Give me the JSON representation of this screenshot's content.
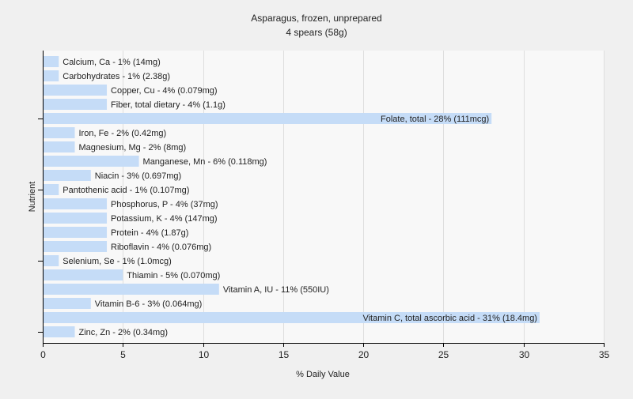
{
  "chart_data": {
    "type": "bar",
    "orientation": "horizontal",
    "title": "Asparagus, frozen, unprepared",
    "subtitle": "4 spears (58g)",
    "xlabel": "% Daily Value",
    "ylabel": "Nutrient",
    "xlim": [
      0,
      35
    ],
    "xticks": [
      0,
      5,
      10,
      15,
      20,
      25,
      30,
      35
    ],
    "grid": true,
    "bar_color": "#c5dcf7",
    "categories": [
      "Calcium, Ca",
      "Carbohydrates",
      "Copper, Cu",
      "Fiber, total dietary",
      "Folate, total",
      "Iron, Fe",
      "Magnesium, Mg",
      "Manganese, Mn",
      "Niacin",
      "Pantothenic acid",
      "Phosphorus, P",
      "Potassium, K",
      "Protein",
      "Riboflavin",
      "Selenium, Se",
      "Thiamin",
      "Vitamin A, IU",
      "Vitamin B-6",
      "Vitamin C, total ascorbic acid",
      "Zinc, Zn"
    ],
    "values": [
      1,
      1,
      4,
      4,
      28,
      2,
      2,
      6,
      3,
      1,
      4,
      4,
      4,
      4,
      1,
      5,
      11,
      3,
      31,
      2
    ],
    "labels": [
      "Calcium, Ca - 1% (14mg)",
      "Carbohydrates - 1% (2.38g)",
      "Copper, Cu - 4% (0.079mg)",
      "Fiber, total dietary - 4% (1.1g)",
      "Folate, total - 28% (111mcg)",
      "Iron, Fe - 2% (0.42mg)",
      "Magnesium, Mg - 2% (8mg)",
      "Manganese, Mn - 6% (0.118mg)",
      "Niacin - 3% (0.697mg)",
      "Pantothenic acid - 1% (0.107mg)",
      "Phosphorus, P - 4% (37mg)",
      "Potassium, K - 4% (147mg)",
      "Protein - 4% (1.87g)",
      "Riboflavin - 4% (0.076mg)",
      "Selenium, Se - 1% (1.0mcg)",
      "Thiamin - 5% (0.070mg)",
      "Vitamin A, IU - 11% (550IU)",
      "Vitamin B-6 - 3% (0.064mg)",
      "Vitamin C, total ascorbic acid - 31% (18.4mg)",
      "Zinc, Zn - 2% (0.34mg)"
    ]
  }
}
